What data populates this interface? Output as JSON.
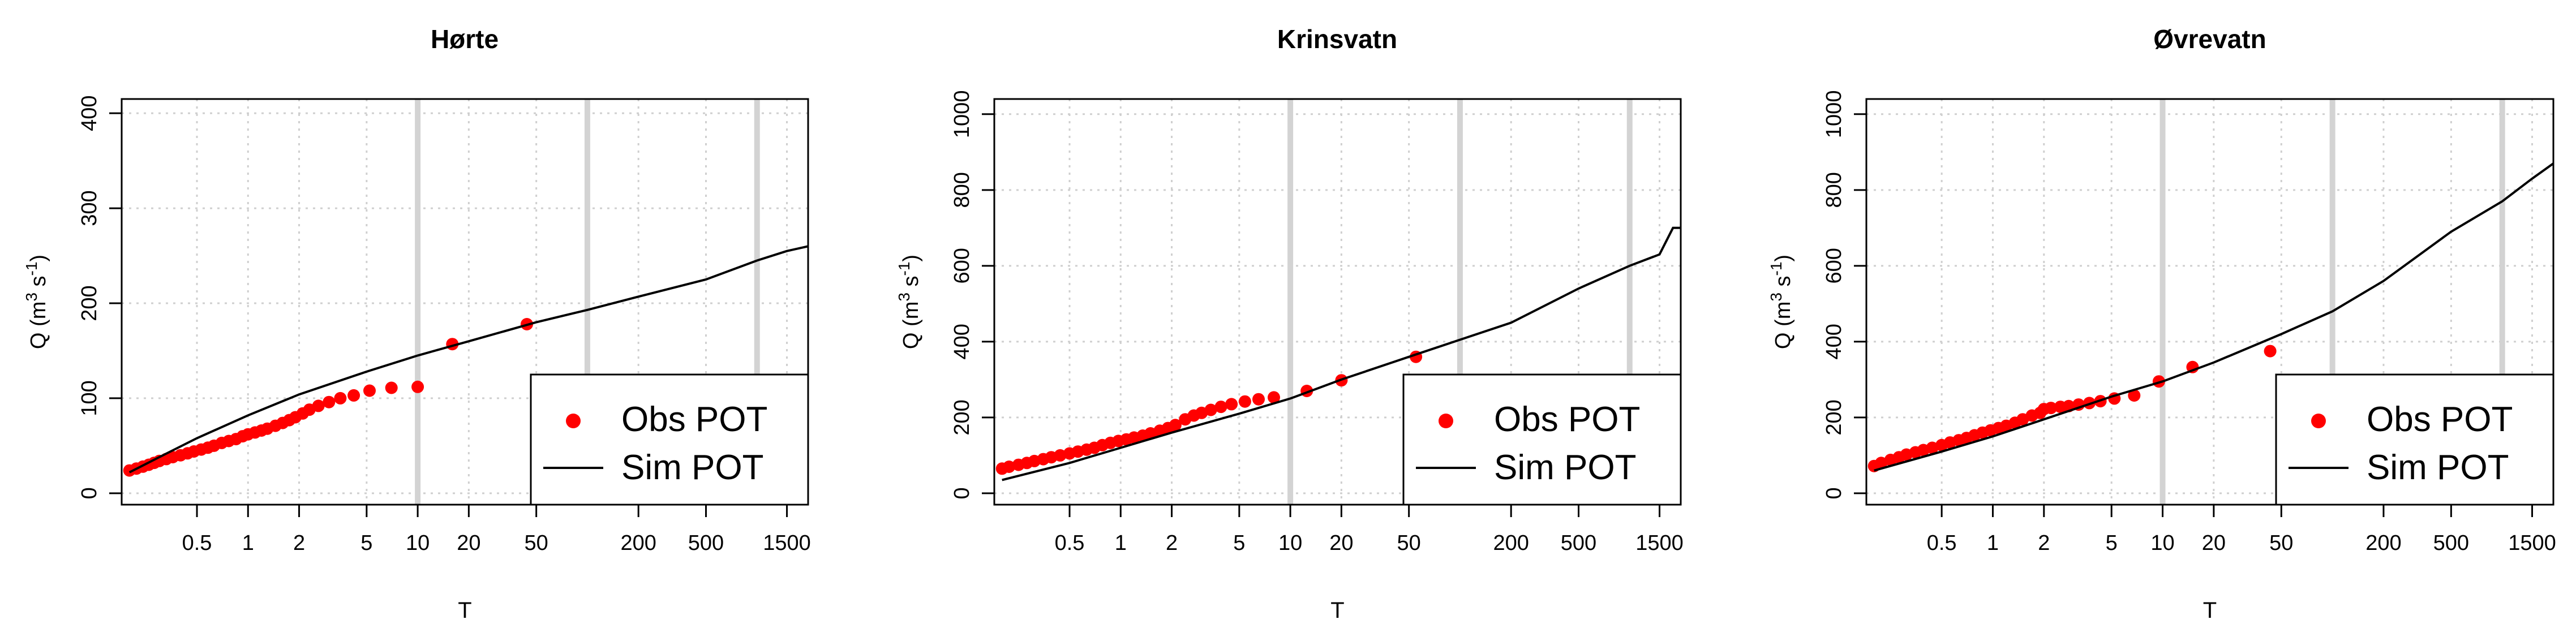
{
  "x_tick_labels": [
    "0.5",
    "1",
    "2",
    "5",
    "10",
    "20",
    "50",
    "200",
    "500",
    "1500"
  ],
  "x_ticks": [
    0.5,
    1,
    2,
    5,
    10,
    20,
    50,
    200,
    500,
    1500
  ],
  "ylabel": {
    "q": "Q (m",
    "sup3": "3",
    "s": " s",
    "supm1": "-1",
    "close": ")"
  },
  "chart_data": [
    {
      "type": "scatter",
      "title": "Hørte",
      "xlabel": "T",
      "ylabel": "Q (m3 s-1)",
      "x_scale": "log",
      "xlim": [
        0.18,
        2000
      ],
      "ylim": [
        -12,
        415
      ],
      "y_ticks": [
        0,
        100,
        200,
        300,
        400
      ],
      "y_tick_labels": [
        "0",
        "100",
        "200",
        "300",
        "400"
      ],
      "grid": true,
      "legend_position": "bottom-right",
      "vlines": [
        10,
        100,
        1000
      ],
      "legend": [
        "Obs POT",
        "Sim POT"
      ],
      "series": [
        {
          "name": "Obs POT",
          "kind": "points",
          "color": "#ff0000",
          "x": [
            0.2,
            0.22,
            0.24,
            0.26,
            0.28,
            0.3,
            0.33,
            0.36,
            0.4,
            0.44,
            0.48,
            0.53,
            0.58,
            0.63,
            0.7,
            0.77,
            0.85,
            0.93,
            1.0,
            1.1,
            1.2,
            1.3,
            1.45,
            1.6,
            1.75,
            1.9,
            2.1,
            2.3,
            2.6,
            3.0,
            3.5,
            4.2,
            5.2,
            7.0,
            10.0,
            16.0,
            44.0
          ],
          "y": [
            24,
            26,
            28,
            30,
            32,
            34,
            36,
            38,
            40,
            42,
            44,
            46,
            48,
            50,
            53,
            55,
            57,
            60,
            62,
            64,
            66,
            68,
            71,
            74,
            77,
            80,
            84,
            88,
            92,
            96,
            100,
            103,
            108,
            111,
            112,
            157,
            178
          ]
        },
        {
          "name": "Sim POT",
          "kind": "line",
          "color": "#000000",
          "x": [
            0.2,
            0.3,
            0.5,
            1,
            2,
            5,
            10,
            20,
            50,
            100,
            200,
            500,
            1000,
            1500,
            2000
          ],
          "y": [
            22,
            38,
            58,
            82,
            104,
            128,
            145,
            160,
            180,
            193,
            207,
            225,
            245,
            255,
            260
          ]
        }
      ]
    },
    {
      "type": "scatter",
      "title": "Krinsvatn",
      "xlabel": "T",
      "ylabel": "Q (m3 s-1)",
      "x_scale": "log",
      "xlim": [
        0.18,
        2000
      ],
      "ylim": [
        -30,
        1040
      ],
      "y_ticks": [
        0,
        200,
        400,
        600,
        800,
        1000
      ],
      "y_tick_labels": [
        "0",
        "200",
        "400",
        "600",
        "800",
        "1000"
      ],
      "grid": true,
      "legend_position": "bottom-right",
      "vlines": [
        10,
        100,
        1000
      ],
      "legend": [
        "Obs POT",
        "Sim POT"
      ],
      "series": [
        {
          "name": "Obs POT",
          "kind": "points",
          "color": "#ff0000",
          "x": [
            0.2,
            0.22,
            0.25,
            0.28,
            0.31,
            0.35,
            0.39,
            0.44,
            0.5,
            0.56,
            0.63,
            0.7,
            0.78,
            0.87,
            0.97,
            1.08,
            1.2,
            1.35,
            1.5,
            1.7,
            1.9,
            2.1,
            2.4,
            2.7,
            3.0,
            3.4,
            3.9,
            4.5,
            5.4,
            6.5,
            8.0,
            12.5,
            20.0,
            55.0
          ],
          "y": [
            65,
            70,
            75,
            80,
            85,
            90,
            95,
            100,
            105,
            110,
            115,
            120,
            127,
            133,
            138,
            142,
            147,
            152,
            158,
            165,
            172,
            180,
            195,
            205,
            212,
            220,
            228,
            235,
            242,
            248,
            253,
            270,
            298,
            360
          ]
        },
        {
          "name": "Sim POT",
          "kind": "line",
          "color": "#000000",
          "x": [
            0.2,
            0.5,
            1,
            2,
            5,
            10,
            20,
            50,
            100,
            200,
            500,
            1000,
            1500,
            1800,
            2000
          ],
          "y": [
            35,
            80,
            120,
            160,
            210,
            250,
            300,
            360,
            405,
            450,
            540,
            600,
            630,
            700,
            700
          ]
        }
      ]
    },
    {
      "type": "scatter",
      "title": "Øvrevatn",
      "xlabel": "T",
      "ylabel": "Q (m3 s-1)",
      "x_scale": "log",
      "xlim": [
        0.18,
        2000
      ],
      "ylim": [
        -30,
        1040
      ],
      "y_ticks": [
        0,
        200,
        400,
        600,
        800,
        1000
      ],
      "y_tick_labels": [
        "0",
        "200",
        "400",
        "600",
        "800",
        "1000"
      ],
      "grid": true,
      "legend_position": "bottom-right",
      "vlines": [
        10,
        100,
        1000
      ],
      "legend": [
        "Obs POT",
        "Sim POT"
      ],
      "series": [
        {
          "name": "Obs POT",
          "kind": "points",
          "color": "#ff0000",
          "x": [
            0.2,
            0.22,
            0.25,
            0.28,
            0.31,
            0.35,
            0.39,
            0.44,
            0.5,
            0.56,
            0.63,
            0.7,
            0.78,
            0.87,
            0.97,
            1.08,
            1.2,
            1.35,
            1.5,
            1.7,
            1.9,
            2.0,
            2.2,
            2.5,
            2.8,
            3.2,
            3.7,
            4.3,
            5.2,
            6.8,
            9.5,
            15.0,
            43.0
          ],
          "y": [
            72,
            80,
            88,
            95,
            102,
            108,
            114,
            120,
            127,
            134,
            140,
            146,
            153,
            160,
            166,
            172,
            178,
            186,
            195,
            205,
            212,
            222,
            225,
            228,
            230,
            234,
            238,
            243,
            250,
            258,
            295,
            333,
            375
          ]
        },
        {
          "name": "Sim POT",
          "kind": "line",
          "color": "#000000",
          "x": [
            0.2,
            0.5,
            1,
            2,
            5,
            10,
            20,
            50,
            100,
            200,
            500,
            1000,
            1500,
            2000
          ],
          "y": [
            60,
            110,
            150,
            195,
            255,
            295,
            345,
            420,
            480,
            560,
            690,
            770,
            830,
            870
          ]
        }
      ]
    }
  ]
}
